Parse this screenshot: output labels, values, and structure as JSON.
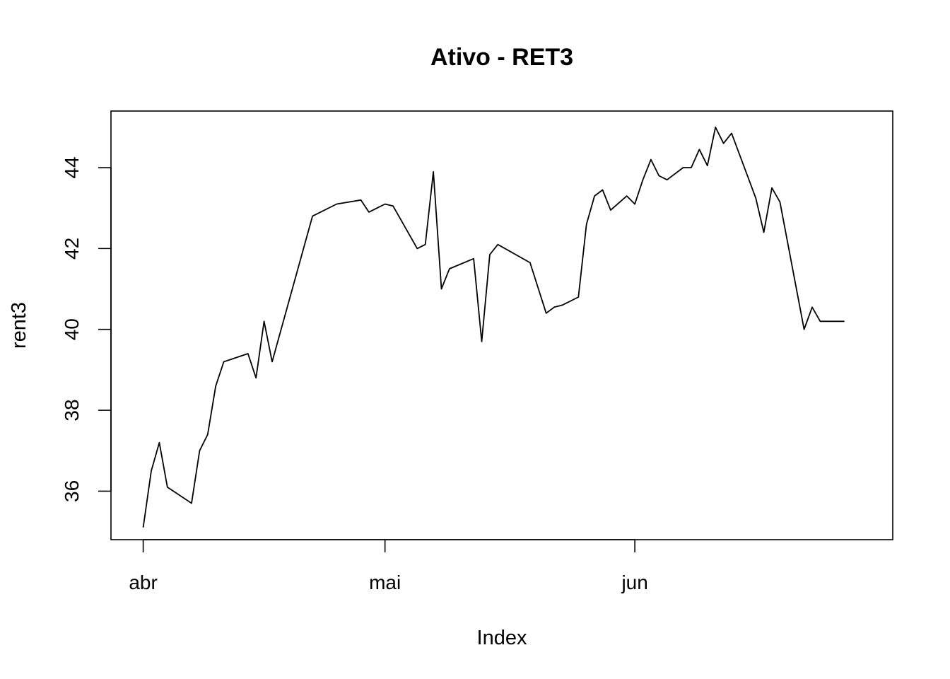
{
  "chart_data": {
    "type": "line",
    "title": "Ativo - RET3",
    "xlabel": "Index",
    "ylabel": "rent3",
    "x_tick_labels": [
      {
        "label": "abr",
        "date": "2020-04-01"
      },
      {
        "label": "mai",
        "date": "2020-05-01"
      },
      {
        "label": "jun",
        "date": "2020-06-01"
      }
    ],
    "y_ticks": [
      36,
      38,
      40,
      42,
      44
    ],
    "ylim": [
      34.8,
      45.4
    ],
    "xlim": [
      "2020-03-28",
      "2020-07-03"
    ],
    "grid": false,
    "legend": "none",
    "line_color": "#000000",
    "series": [
      {
        "x": [
          "2020-04-01",
          "2020-04-02",
          "2020-04-03",
          "2020-04-04",
          "2020-04-07",
          "2020-04-08",
          "2020-04-09",
          "2020-04-10",
          "2020-04-11",
          "2020-04-14",
          "2020-04-15",
          "2020-04-16",
          "2020-04-17",
          "2020-04-22",
          "2020-04-25",
          "2020-04-28",
          "2020-04-29",
          "2020-04-30",
          "2020-05-01",
          "2020-05-02",
          "2020-05-05",
          "2020-05-06",
          "2020-05-07",
          "2020-05-08",
          "2020-05-09",
          "2020-05-12",
          "2020-05-13",
          "2020-05-14",
          "2020-05-15",
          "2020-05-19",
          "2020-05-21",
          "2020-05-22",
          "2020-05-23",
          "2020-05-25",
          "2020-05-26",
          "2020-05-27",
          "2020-05-28",
          "2020-05-29",
          "2020-05-31",
          "2020-06-01",
          "2020-06-02",
          "2020-06-03",
          "2020-06-04",
          "2020-06-05",
          "2020-06-07",
          "2020-06-08",
          "2020-06-09",
          "2020-06-10",
          "2020-06-11",
          "2020-06-12",
          "2020-06-13",
          "2020-06-16",
          "2020-06-17",
          "2020-06-18",
          "2020-06-19",
          "2020-06-22",
          "2020-06-23",
          "2020-06-24",
          "2020-06-25",
          "2020-06-26",
          "2020-06-27"
        ],
        "y": [
          35.1,
          36.5,
          37.2,
          36.1,
          35.7,
          37.0,
          37.4,
          38.6,
          39.2,
          39.4,
          38.8,
          40.2,
          39.2,
          42.8,
          43.1,
          43.2,
          42.9,
          43.0,
          43.1,
          43.05,
          42.0,
          42.1,
          43.9,
          41.0,
          41.5,
          41.75,
          39.7,
          41.85,
          42.1,
          41.65,
          40.4,
          40.55,
          40.6,
          40.8,
          42.6,
          43.3,
          43.45,
          42.95,
          43.3,
          43.1,
          43.7,
          44.2,
          43.8,
          43.7,
          44.0,
          44.0,
          44.45,
          44.05,
          45.0,
          44.6,
          44.85,
          43.25,
          42.4,
          43.5,
          43.15,
          40.0,
          40.55,
          40.2,
          40.2,
          40.2,
          40.2
        ]
      }
    ]
  }
}
